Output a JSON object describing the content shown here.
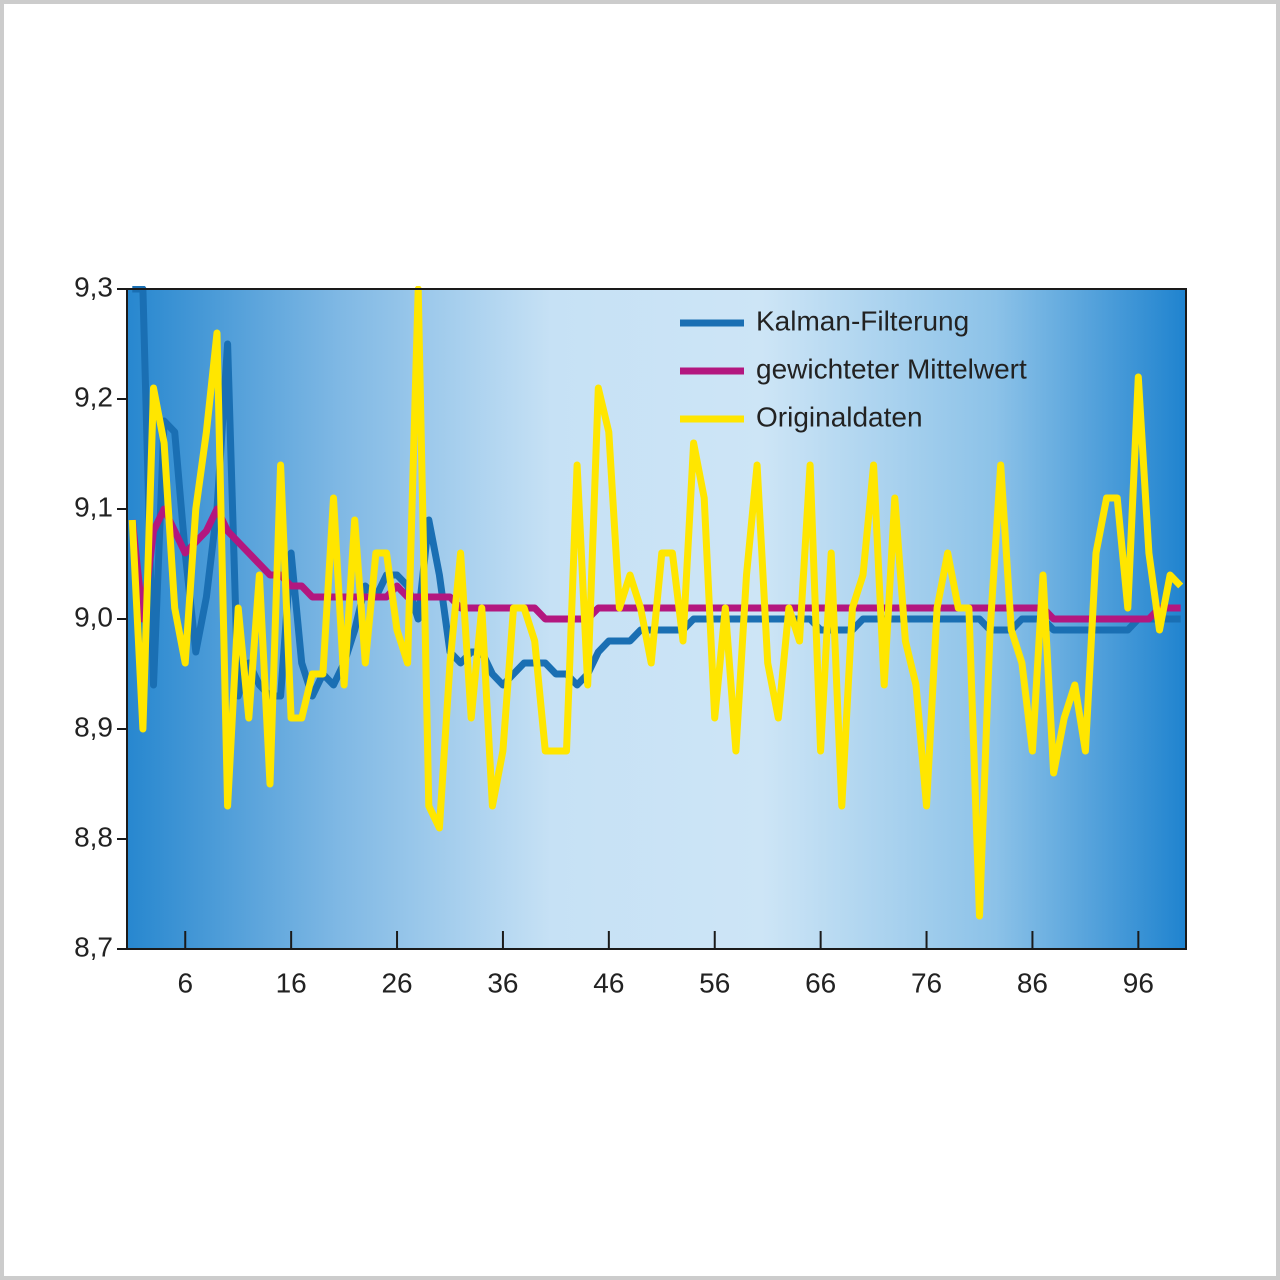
{
  "chart_data": {
    "type": "line",
    "x": [
      1,
      2,
      3,
      4,
      5,
      6,
      7,
      8,
      9,
      10,
      11,
      12,
      13,
      14,
      15,
      16,
      17,
      18,
      19,
      20,
      21,
      22,
      23,
      24,
      25,
      26,
      27,
      28,
      29,
      30,
      31,
      32,
      33,
      34,
      35,
      36,
      37,
      38,
      39,
      40,
      41,
      42,
      43,
      44,
      45,
      46,
      47,
      48,
      49,
      50,
      51,
      52,
      53,
      54,
      55,
      56,
      57,
      58,
      59,
      60,
      61,
      62,
      63,
      64,
      65,
      66,
      67,
      68,
      69,
      70,
      71,
      72,
      73,
      74,
      75,
      76,
      77,
      78,
      79,
      80,
      81,
      82,
      83,
      84,
      85,
      86,
      87,
      88,
      89,
      90,
      91,
      92,
      93,
      94,
      95,
      96,
      97,
      98,
      99,
      100
    ],
    "xlim": [
      0.5,
      100.5
    ],
    "xticks": [
      6,
      16,
      26,
      36,
      46,
      56,
      66,
      76,
      86,
      96
    ],
    "ylim": [
      8.7,
      9.3
    ],
    "yticks": [
      {
        "value": 8.7,
        "label": "8,7"
      },
      {
        "value": 8.8,
        "label": "8,8"
      },
      {
        "value": 8.9,
        "label": "8,9"
      },
      {
        "value": 9.0,
        "label": "9,0"
      },
      {
        "value": 9.1,
        "label": "9,1"
      },
      {
        "value": 9.2,
        "label": "9,2"
      },
      {
        "value": 9.3,
        "label": "9,3"
      }
    ],
    "legend": "upper right",
    "series": [
      {
        "name": "Kalman-Filterung",
        "color": "#1a6fb3",
        "values": [
          9.3,
          9.3,
          8.94,
          9.18,
          9.17,
          9.06,
          8.97,
          9.02,
          9.1,
          9.25,
          8.93,
          8.96,
          8.94,
          8.93,
          8.93,
          9.06,
          8.96,
          8.93,
          8.95,
          8.94,
          8.96,
          8.99,
          9.03,
          9.02,
          9.04,
          9.04,
          9.03,
          9.0,
          9.09,
          9.04,
          8.97,
          8.96,
          8.97,
          8.97,
          8.95,
          8.94,
          8.95,
          8.96,
          8.96,
          8.96,
          8.95,
          8.95,
          8.94,
          8.95,
          8.97,
          8.98,
          8.98,
          8.98,
          8.99,
          8.99,
          8.99,
          8.99,
          8.99,
          9.0,
          9.0,
          9.0,
          9.0,
          9.0,
          9.0,
          9.0,
          9.0,
          9.0,
          9.0,
          9.0,
          9.0,
          8.99,
          8.99,
          8.99,
          8.99,
          9.0,
          9.0,
          9.0,
          9.0,
          9.0,
          9.0,
          9.0,
          9.0,
          9.0,
          9.0,
          9.0,
          9.0,
          8.99,
          8.99,
          8.99,
          9.0,
          9.0,
          9.0,
          8.99,
          8.99,
          8.99,
          8.99,
          8.99,
          8.99,
          8.99,
          8.99,
          9.0,
          9.0,
          9.0,
          9.0,
          9.0
        ]
      },
      {
        "name": "gewichteter Mittelwert",
        "color": "#b3177f",
        "values": [
          9.09,
          9.0,
          9.08,
          9.1,
          9.08,
          9.06,
          9.07,
          9.08,
          9.1,
          9.08,
          9.07,
          9.06,
          9.05,
          9.04,
          9.04,
          9.03,
          9.03,
          9.02,
          9.02,
          9.02,
          9.02,
          9.02,
          9.02,
          9.02,
          9.02,
          9.03,
          9.02,
          9.02,
          9.02,
          9.02,
          9.02,
          9.01,
          9.01,
          9.01,
          9.01,
          9.01,
          9.01,
          9.01,
          9.01,
          9.0,
          9.0,
          9.0,
          9.0,
          9.0,
          9.01,
          9.01,
          9.01,
          9.01,
          9.01,
          9.01,
          9.01,
          9.01,
          9.01,
          9.01,
          9.01,
          9.01,
          9.01,
          9.01,
          9.01,
          9.01,
          9.01,
          9.01,
          9.01,
          9.01,
          9.01,
          9.01,
          9.01,
          9.01,
          9.01,
          9.01,
          9.01,
          9.01,
          9.01,
          9.01,
          9.01,
          9.01,
          9.01,
          9.01,
          9.01,
          9.01,
          9.01,
          9.01,
          9.01,
          9.01,
          9.01,
          9.01,
          9.01,
          9.0,
          9.0,
          9.0,
          9.0,
          9.0,
          9.0,
          9.0,
          9.0,
          9.0,
          9.0,
          9.01,
          9.01,
          9.01
        ]
      },
      {
        "name": "Originaldaten",
        "color": "#ffe600",
        "values": [
          9.09,
          8.9,
          9.21,
          9.16,
          9.01,
          8.96,
          9.1,
          9.17,
          9.26,
          8.83,
          9.01,
          8.91,
          9.04,
          8.85,
          9.14,
          8.91,
          8.91,
          8.95,
          8.95,
          9.11,
          8.94,
          9.09,
          8.96,
          9.06,
          9.06,
          8.99,
          8.96,
          9.3,
          8.83,
          8.81,
          8.96,
          9.06,
          8.91,
          9.01,
          8.83,
          8.88,
          9.01,
          9.01,
          8.98,
          8.88,
          8.88,
          8.88,
          9.14,
          8.94,
          9.21,
          9.17,
          9.01,
          9.04,
          9.01,
          8.96,
          9.06,
          9.06,
          8.98,
          9.16,
          9.11,
          8.91,
          9.01,
          8.88,
          9.04,
          9.14,
          8.96,
          8.91,
          9.01,
          8.98,
          9.14,
          8.88,
          9.06,
          8.83,
          9.01,
          9.04,
          9.14,
          8.94,
          9.11,
          8.98,
          8.94,
          8.83,
          9.01,
          9.06,
          9.01,
          9.01,
          8.73,
          8.99,
          9.14,
          8.99,
          8.96,
          8.88,
          9.04,
          8.86,
          8.91,
          8.94,
          8.88,
          9.06,
          9.11,
          9.11,
          9.01,
          9.22,
          9.06,
          8.99,
          9.04,
          9.03
        ]
      }
    ]
  }
}
